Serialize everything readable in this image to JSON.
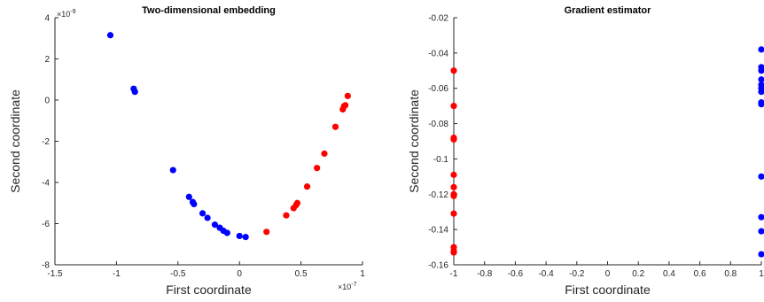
{
  "chart_data": [
    {
      "type": "scatter",
      "title": "Two-dimensional embedding",
      "xlabel": "First coordinate",
      "ylabel": "Second coordinate",
      "x_exponent_label": "×10",
      "x_exponent_power": "-7",
      "y_exponent_label": "×10",
      "y_exponent_power": "-9",
      "xlim": [
        -1.5,
        1
      ],
      "ylim": [
        -8,
        4
      ],
      "xticks": [
        -1.5,
        -1,
        -0.5,
        0,
        0.5,
        1
      ],
      "xtick_labels": [
        "-1.5",
        "-1",
        "-0.5",
        "0",
        "0.5",
        "1"
      ],
      "yticks": [
        -8,
        -6,
        -4,
        -2,
        0,
        2,
        4
      ],
      "ytick_labels": [
        "-8",
        "-6",
        "-4",
        "-2",
        "0",
        "2",
        "4"
      ],
      "grid": false,
      "series": [
        {
          "color": "#0000ff",
          "points": [
            [
              -1.05,
              3.15
            ],
            [
              -0.86,
              0.55
            ],
            [
              -0.85,
              0.4
            ],
            [
              -0.54,
              -3.4
            ],
            [
              -0.41,
              -4.7
            ],
            [
              -0.38,
              -4.95
            ],
            [
              -0.37,
              -5.05
            ],
            [
              -0.3,
              -5.5
            ],
            [
              -0.26,
              -5.72
            ],
            [
              -0.2,
              -6.05
            ],
            [
              -0.16,
              -6.2
            ],
            [
              -0.13,
              -6.35
            ],
            [
              -0.1,
              -6.45
            ],
            [
              0.0,
              -6.6
            ],
            [
              0.05,
              -6.65
            ]
          ]
        },
        {
          "color": "#ff0000",
          "points": [
            [
              0.22,
              -6.4
            ],
            [
              0.38,
              -5.6
            ],
            [
              0.44,
              -5.25
            ],
            [
              0.46,
              -5.1
            ],
            [
              0.47,
              -5.0
            ],
            [
              0.55,
              -4.2
            ],
            [
              0.63,
              -3.3
            ],
            [
              0.69,
              -2.6
            ],
            [
              0.78,
              -1.3
            ],
            [
              0.84,
              -0.45
            ],
            [
              0.85,
              -0.3
            ],
            [
              0.86,
              -0.25
            ],
            [
              0.88,
              0.2
            ]
          ]
        }
      ]
    },
    {
      "type": "scatter",
      "title": "Gradient estimator",
      "xlabel": "First coordinate",
      "ylabel": "Second coordinate",
      "xlim": [
        -1,
        1
      ],
      "ylim": [
        -0.16,
        -0.02
      ],
      "xticks": [
        -1,
        -0.8,
        -0.6,
        -0.4,
        -0.2,
        0,
        0.2,
        0.4,
        0.6,
        0.8,
        1
      ],
      "xtick_labels": [
        "-1",
        "-0.8",
        "-0.6",
        "-0.4",
        "-0.2",
        "0",
        "0.2",
        "0.4",
        "0.6",
        "0.8",
        "1"
      ],
      "yticks": [
        -0.16,
        -0.14,
        -0.12,
        -0.1,
        -0.08,
        -0.06,
        -0.04,
        -0.02
      ],
      "ytick_labels": [
        "-0.16",
        "-0.14",
        "-0.12",
        "-0.1",
        "-0.08",
        "-0.06",
        "-0.04",
        "-0.02"
      ],
      "grid": false,
      "series": [
        {
          "color": "#ff0000",
          "points": [
            [
              -1,
              -0.05
            ],
            [
              -1,
              -0.07
            ],
            [
              -1,
              -0.088
            ],
            [
              -1,
              -0.089
            ],
            [
              -1,
              -0.109
            ],
            [
              -1,
              -0.116
            ],
            [
              -1,
              -0.12
            ],
            [
              -1,
              -0.121
            ],
            [
              -1,
              -0.131
            ],
            [
              -1,
              -0.15
            ],
            [
              -1,
              -0.152
            ],
            [
              -1,
              -0.153
            ]
          ]
        },
        {
          "color": "#0000ff",
          "points": [
            [
              1,
              -0.038
            ],
            [
              1,
              -0.048
            ],
            [
              1,
              -0.05
            ],
            [
              1,
              -0.055
            ],
            [
              1,
              -0.058
            ],
            [
              1,
              -0.06
            ],
            [
              1,
              -0.062
            ],
            [
              1,
              -0.068
            ],
            [
              1,
              -0.069
            ],
            [
              1,
              -0.11
            ],
            [
              1,
              -0.133
            ],
            [
              1,
              -0.141
            ],
            [
              1,
              -0.154
            ]
          ]
        }
      ]
    }
  ]
}
